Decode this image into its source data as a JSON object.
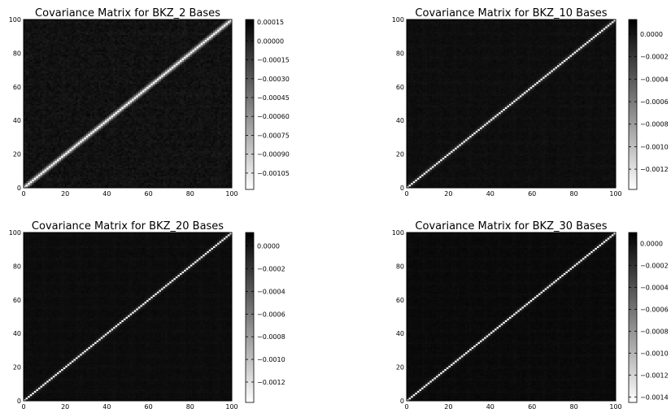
{
  "chart_data": [
    {
      "type": "heatmap",
      "title": "Covariance Matrix for BKZ_2 Bases",
      "colormap": "gray",
      "matrix_size": 100,
      "x_ticks": [
        "0",
        "20",
        "40",
        "60",
        "80",
        "100"
      ],
      "y_ticks": [
        "0",
        "20",
        "40",
        "60",
        "80",
        "100"
      ],
      "xlim": [
        0,
        100
      ],
      "ylim": [
        0,
        100
      ],
      "clim": [
        -0.00118,
        0.00017
      ],
      "colorbar_ticks": [
        0.00015,
        0.0,
        -0.00015,
        -0.0003,
        -0.00045,
        -0.0006,
        -0.00075,
        -0.0009,
        -0.00105
      ],
      "colorbar_labels": [
        "0.00015",
        "0.00000",
        "−0.00015",
        "−0.00030",
        "−0.00045",
        "−0.00060",
        "−0.00075",
        "−0.00090",
        "−0.00105"
      ],
      "diagonal_value": -0.00118,
      "near_diagonal_value": -0.00055,
      "background_mean": 8e-05,
      "background_noise": 4e-05
    },
    {
      "type": "heatmap",
      "title": "Covariance Matrix for BKZ_10 Bases",
      "colormap": "gray",
      "matrix_size": 100,
      "x_ticks": [
        "0",
        "20",
        "40",
        "60",
        "80",
        "100"
      ],
      "y_ticks": [
        "0",
        "20",
        "40",
        "60",
        "80",
        "100"
      ],
      "xlim": [
        0,
        100
      ],
      "ylim": [
        0,
        100
      ],
      "clim": [
        -0.00138,
        0.00013
      ],
      "colorbar_ticks": [
        0.0,
        -0.0002,
        -0.0004,
        -0.0006,
        -0.0008,
        -0.001,
        -0.0012
      ],
      "colorbar_labels": [
        "0.0000",
        "−0.0002",
        "−0.0004",
        "−0.0006",
        "−0.0008",
        "−0.0010",
        "−0.0012"
      ],
      "diagonal_value": -0.00136,
      "near_diagonal_value": -0.00012,
      "background_mean": 5e-05,
      "background_noise": 2e-05
    },
    {
      "type": "heatmap",
      "title": "Covariance Matrix for BKZ_20 Bases",
      "colormap": "gray",
      "matrix_size": 100,
      "x_ticks": [
        "0",
        "20",
        "40",
        "60",
        "80",
        "100"
      ],
      "y_ticks": [
        "0",
        "20",
        "40",
        "60",
        "80",
        "100"
      ],
      "xlim": [
        0,
        100
      ],
      "ylim": [
        0,
        100
      ],
      "clim": [
        -0.00138,
        0.00012
      ],
      "colorbar_ticks": [
        0.0,
        -0.0002,
        -0.0004,
        -0.0006,
        -0.0008,
        -0.001,
        -0.0012
      ],
      "colorbar_labels": [
        "0.0000",
        "−0.0002",
        "−0.0004",
        "−0.0006",
        "−0.0008",
        "−0.0010",
        "−0.0012"
      ],
      "diagonal_value": -0.00136,
      "near_diagonal_value": -8e-05,
      "background_mean": 5e-05,
      "background_noise": 1.5e-05
    },
    {
      "type": "heatmap",
      "title": "Covariance Matrix for BKZ_30 Bases",
      "colormap": "gray",
      "matrix_size": 100,
      "x_ticks": [
        "0",
        "20",
        "40",
        "60",
        "80",
        "100"
      ],
      "y_ticks": [
        "0",
        "20",
        "40",
        "60",
        "80",
        "100"
      ],
      "xlim": [
        0,
        100
      ],
      "ylim": [
        0,
        100
      ],
      "clim": [
        -0.00145,
        0.0001
      ],
      "colorbar_ticks": [
        0.0,
        -0.0002,
        -0.0004,
        -0.0006,
        -0.0008,
        -0.001,
        -0.0012,
        -0.0014
      ],
      "colorbar_labels": [
        "0.0000",
        "−0.0002",
        "−0.0004",
        "−0.0006",
        "−0.0008",
        "−0.0010",
        "−0.0012",
        "−0.0014"
      ],
      "diagonal_value": -0.00144,
      "near_diagonal_value": -8e-05,
      "background_mean": 4e-05,
      "background_noise": 1.5e-05
    }
  ]
}
